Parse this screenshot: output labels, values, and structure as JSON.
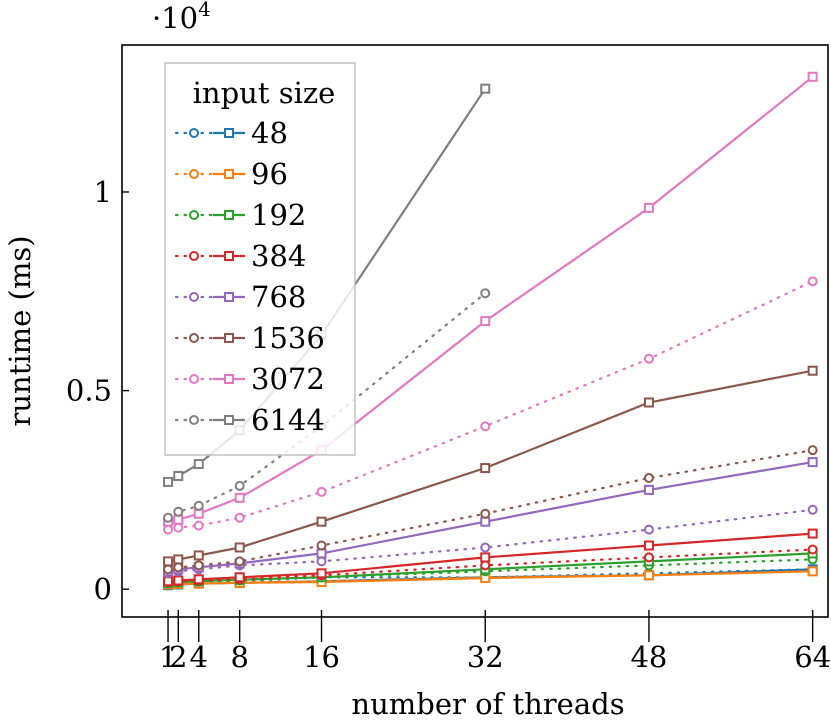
{
  "chart_data": {
    "type": "line",
    "xlabel": "number of threads",
    "ylabel": "runtime (ms)",
    "y_multiplier_label": "·10",
    "y_multiplier_exponent": "4",
    "x_ticks": [
      1,
      2,
      4,
      8,
      16,
      32,
      48,
      64
    ],
    "x_tick_labels": [
      "1",
      "2",
      "4",
      "8",
      "16",
      "32",
      "48",
      "64"
    ],
    "y_ticks": [
      0,
      0.5,
      1
    ],
    "y_tick_labels": [
      "0",
      "0.5",
      "1"
    ],
    "xlim": [
      -3.5,
      65.5
    ],
    "ylim": [
      -0.07,
      1.37
    ],
    "grid": false,
    "legend": {
      "title": "input size",
      "position": "top-left",
      "entries": [
        "48",
        "96",
        "192",
        "384",
        "768",
        "1536",
        "3072",
        "6144"
      ]
    },
    "colors": [
      "#1f77b4",
      "#ff7f0e",
      "#2ca02c",
      "#d62728",
      "#9467bd",
      "#8c564b",
      "#e377c2",
      "#7f7f7f"
    ],
    "series": [
      {
        "name": "48",
        "color": "#1f77b4",
        "dotted": {
          "x": [
            1,
            2,
            4,
            8,
            16,
            32,
            48,
            64
          ],
          "y": [
            0.01,
            0.012,
            0.015,
            0.02,
            0.03,
            0.03,
            0.04,
            0.05
          ]
        },
        "solid": {
          "x": [
            1,
            2,
            4,
            8,
            16,
            32,
            48,
            64
          ],
          "y": [
            0.01,
            0.012,
            0.014,
            0.016,
            0.02,
            0.03,
            0.035,
            0.05
          ]
        }
      },
      {
        "name": "96",
        "color": "#ff7f0e",
        "dotted": {
          "x": [
            1,
            2,
            4,
            8,
            16,
            32,
            48,
            64
          ],
          "y": [
            0.012,
            0.013,
            0.015,
            0.017,
            0.02,
            0.03,
            0.035,
            0.045
          ]
        },
        "solid": {
          "x": [
            1,
            2,
            4,
            8,
            16,
            32,
            48,
            64
          ],
          "y": [
            0.012,
            0.013,
            0.014,
            0.016,
            0.018,
            0.028,
            0.035,
            0.045
          ]
        }
      },
      {
        "name": "192",
        "color": "#2ca02c",
        "dotted": {
          "x": [
            1,
            2,
            4,
            8,
            16,
            32,
            48,
            64
          ],
          "y": [
            0.015,
            0.017,
            0.019,
            0.022,
            0.03,
            0.045,
            0.06,
            0.075
          ]
        },
        "solid": {
          "x": [
            1,
            2,
            4,
            8,
            16,
            32,
            48,
            64
          ],
          "y": [
            0.016,
            0.018,
            0.02,
            0.024,
            0.03,
            0.05,
            0.07,
            0.09
          ]
        }
      },
      {
        "name": "384",
        "color": "#d62728",
        "dotted": {
          "x": [
            1,
            2,
            4,
            8,
            16,
            32,
            48,
            64
          ],
          "y": [
            0.018,
            0.02,
            0.022,
            0.025,
            0.035,
            0.06,
            0.08,
            0.1
          ]
        },
        "solid": {
          "x": [
            1,
            2,
            4,
            8,
            16,
            32,
            48,
            64
          ],
          "y": [
            0.02,
            0.022,
            0.025,
            0.03,
            0.04,
            0.08,
            0.11,
            0.14
          ]
        }
      },
      {
        "name": "768",
        "color": "#9467bd",
        "dotted": {
          "x": [
            1,
            2,
            4,
            8,
            16,
            32,
            48,
            64
          ],
          "y": [
            0.04,
            0.045,
            0.05,
            0.06,
            0.07,
            0.105,
            0.15,
            0.2
          ]
        },
        "solid": {
          "x": [
            1,
            2,
            4,
            8,
            16,
            32,
            48,
            64
          ],
          "y": [
            0.045,
            0.05,
            0.055,
            0.065,
            0.09,
            0.17,
            0.25,
            0.32
          ]
        }
      },
      {
        "name": "1536",
        "color": "#8c564b",
        "dotted": {
          "x": [
            1,
            2,
            4,
            8,
            16,
            32,
            48,
            64
          ],
          "y": [
            0.05,
            0.055,
            0.06,
            0.07,
            0.11,
            0.19,
            0.28,
            0.35
          ]
        },
        "solid": {
          "x": [
            1,
            2,
            4,
            8,
            16,
            32,
            48,
            64
          ],
          "y": [
            0.07,
            0.075,
            0.085,
            0.105,
            0.17,
            0.305,
            0.47,
            0.55
          ]
        }
      },
      {
        "name": "3072",
        "color": "#e377c2",
        "dotted": {
          "x": [
            1,
            2,
            4,
            8,
            16,
            32,
            48,
            64
          ],
          "y": [
            0.15,
            0.155,
            0.16,
            0.18,
            0.245,
            0.41,
            0.58,
            0.775
          ]
        },
        "solid": {
          "x": [
            1,
            2,
            4,
            8,
            16,
            32,
            48,
            64
          ],
          "y": [
            0.17,
            0.175,
            0.19,
            0.23,
            0.35,
            0.675,
            0.96,
            1.29
          ]
        }
      },
      {
        "name": "6144",
        "color": "#7f7f7f",
        "dotted": {
          "x": [
            1,
            2,
            4,
            8,
            16,
            32
          ],
          "y": [
            0.18,
            0.195,
            0.21,
            0.26,
            0.41,
            0.745
          ]
        },
        "solid": {
          "x": [
            1,
            2,
            4,
            8,
            16,
            32
          ],
          "y": [
            0.27,
            0.285,
            0.315,
            0.4,
            0.64,
            1.26
          ]
        }
      }
    ]
  }
}
